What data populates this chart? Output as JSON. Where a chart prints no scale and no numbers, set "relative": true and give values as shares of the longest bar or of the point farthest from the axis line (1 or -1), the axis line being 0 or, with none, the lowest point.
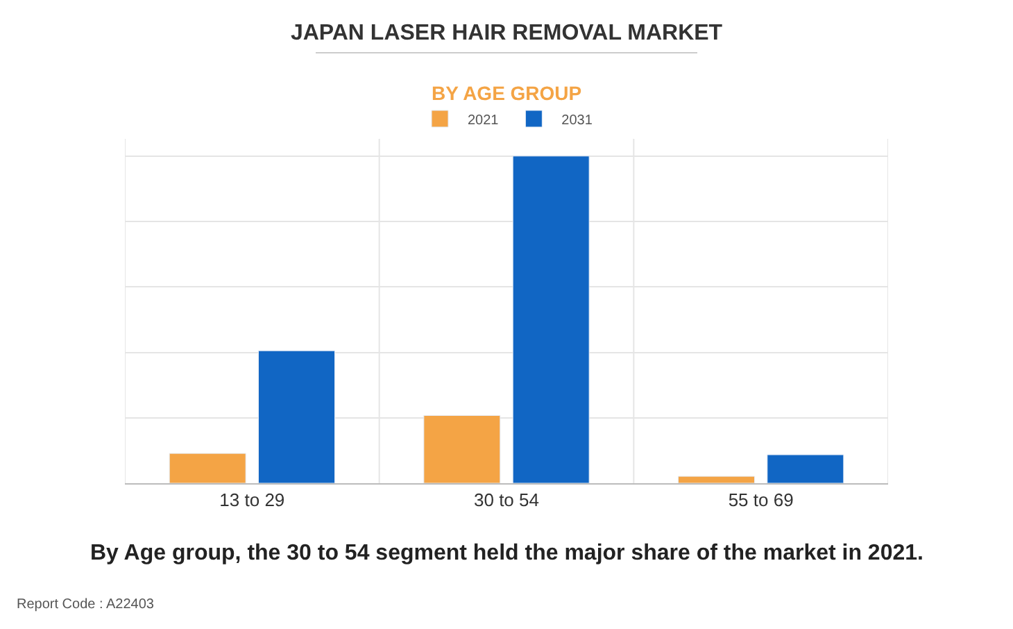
{
  "chart_data": {
    "type": "bar",
    "title": "JAPAN LASER HAIR REMOVAL MARKET",
    "subtitle": "BY AGE GROUP",
    "categories": [
      "13 to 29",
      "30 to 54",
      "55 to 69"
    ],
    "series": [
      {
        "name": "2021",
        "color": "#f4a445",
        "values": [
          0.091,
          0.207,
          0.021
        ]
      },
      {
        "name": "2031",
        "color": "#1166c4",
        "values": [
          0.405,
          1,
          0.087
        ]
      }
    ],
    "relative": true,
    "grid": true,
    "legend": "top",
    "annotations": [
      "By Age group, the 30 to 54 segment held the major share of the market in 2021.",
      "Report Code : A22403"
    ]
  }
}
